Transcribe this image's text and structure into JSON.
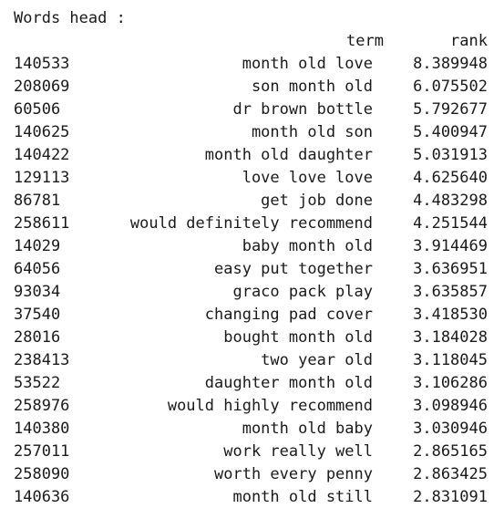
{
  "title": "Words head :",
  "columns": {
    "term": "term",
    "rank": "rank"
  },
  "rows": [
    {
      "id": "140533",
      "term": "month old love",
      "rank": "8.389948"
    },
    {
      "id": "208069",
      "term": "son month old",
      "rank": "6.075502"
    },
    {
      "id": "60506",
      "term": "dr brown bottle",
      "rank": "5.792677"
    },
    {
      "id": "140625",
      "term": "month old son",
      "rank": "5.400947"
    },
    {
      "id": "140422",
      "term": "month old daughter",
      "rank": "5.031913"
    },
    {
      "id": "129113",
      "term": "love love love",
      "rank": "4.625640"
    },
    {
      "id": "86781",
      "term": "get job done",
      "rank": "4.483298"
    },
    {
      "id": "258611",
      "term": "would definitely recommend",
      "rank": "4.251544"
    },
    {
      "id": "14029",
      "term": "baby month old",
      "rank": "3.914469"
    },
    {
      "id": "64056",
      "term": "easy put together",
      "rank": "3.636951"
    },
    {
      "id": "93034",
      "term": "graco pack play",
      "rank": "3.635857"
    },
    {
      "id": "37540",
      "term": "changing pad cover",
      "rank": "3.418530"
    },
    {
      "id": "28016",
      "term": "bought month old",
      "rank": "3.184028"
    },
    {
      "id": "238413",
      "term": "two year old",
      "rank": "3.118045"
    },
    {
      "id": "53522",
      "term": "daughter month old",
      "rank": "3.106286"
    },
    {
      "id": "258976",
      "term": "would highly recommend",
      "rank": "3.098946"
    },
    {
      "id": "140380",
      "term": "month old baby",
      "rank": "3.030946"
    },
    {
      "id": "257011",
      "term": "work really well",
      "rank": "2.865165"
    },
    {
      "id": "258090",
      "term": "worth every penny",
      "rank": "2.863425"
    },
    {
      "id": "140636",
      "term": "month old still",
      "rank": "2.831091"
    }
  ]
}
